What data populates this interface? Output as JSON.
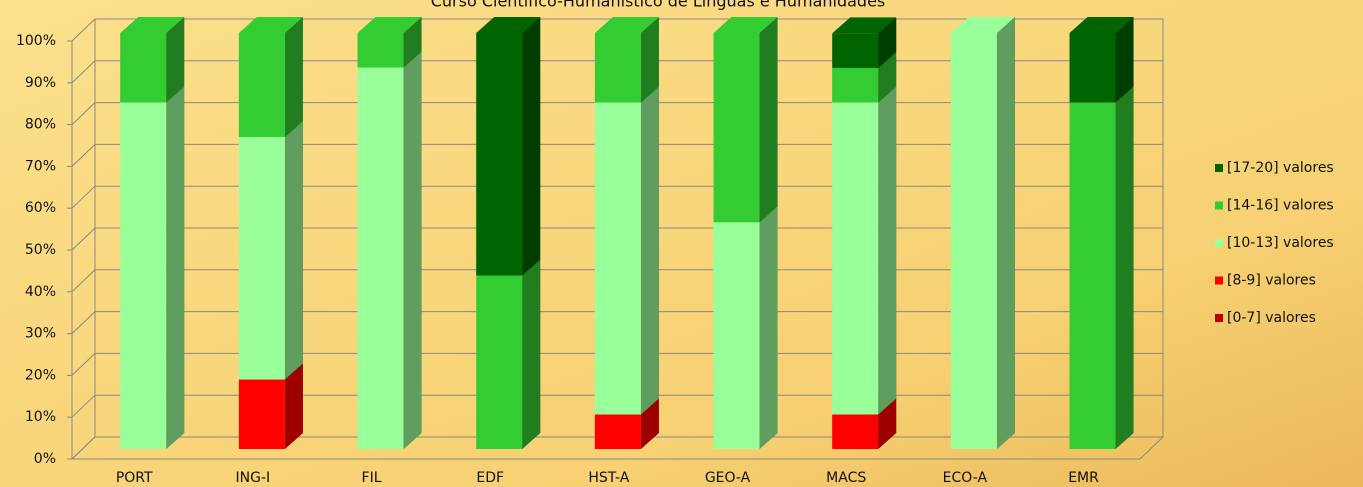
{
  "chart_data": {
    "type": "bar",
    "stacked": true,
    "title": "Curso Científico-Humanístico de Línguas e Humanidades",
    "categories": [
      "PORT",
      "ING-I",
      "FIL",
      "EDF",
      "HST-A",
      "GEO-A",
      "MACS",
      "ECO-A",
      "EMR"
    ],
    "series": [
      {
        "name": "[0-7] valores",
        "color": "#c00000",
        "values": [
          0,
          0,
          0,
          0,
          0,
          0,
          0,
          0,
          0
        ]
      },
      {
        "name": "[8-9] valores",
        "color": "#ff0000",
        "values": [
          0,
          16.7,
          0,
          0,
          8.3,
          0,
          8.3,
          0,
          0
        ]
      },
      {
        "name": "[10-13] valores",
        "color": "#99ff99",
        "values": [
          83.3,
          58.3,
          91.7,
          0,
          75,
          54.5,
          75,
          100,
          0
        ]
      },
      {
        "name": "[14-16] valores",
        "color": "#33cc33",
        "values": [
          16.7,
          25,
          8.3,
          41.7,
          16.7,
          45.5,
          8.3,
          0,
          83.3
        ]
      },
      {
        "name": "[17-20] valores",
        "color": "#006400",
        "values": [
          0,
          0,
          0,
          58.3,
          0,
          0,
          8.3,
          0,
          16.7
        ]
      }
    ],
    "ylim": [
      0,
      100
    ],
    "yticks": [
      {
        "value": 0,
        "label": "0%"
      },
      {
        "value": 10,
        "label": "10%"
      },
      {
        "value": 20,
        "label": "20%"
      },
      {
        "value": 30,
        "label": "30%"
      },
      {
        "value": 40,
        "label": "40%"
      },
      {
        "value": 50,
        "label": "50%"
      },
      {
        "value": 60,
        "label": "60%"
      },
      {
        "value": 70,
        "label": "70%"
      },
      {
        "value": 80,
        "label": "80%"
      },
      {
        "value": 90,
        "label": "90%"
      },
      {
        "value": 100,
        "label": "100%"
      }
    ],
    "grid": true,
    "legend": "right"
  }
}
